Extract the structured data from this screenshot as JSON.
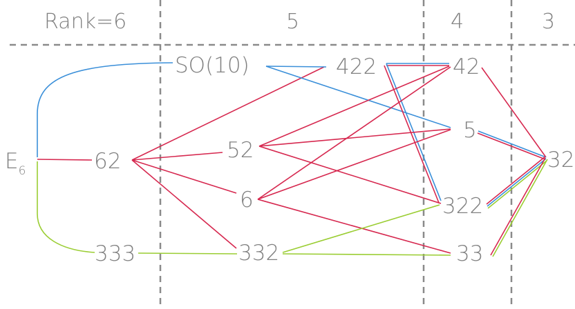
{
  "rank_headers": [
    "Rank=6",
    "5",
    "4",
    "3"
  ],
  "colors": {
    "blue": "#3a8fd9",
    "red": "#d6284f",
    "green": "#9acd32",
    "text": "#808080",
    "grid": "#8a8a8a"
  },
  "nodes": {
    "e6": "E",
    "e6_sub": "6",
    "n62": "62",
    "n333": "333",
    "so10": "SO(10)",
    "n422": "422",
    "n52": "52",
    "n6": "6",
    "n332": "332",
    "n42": "42",
    "n5": "5",
    "n322": "322",
    "n33": "33",
    "n32": "32"
  }
}
